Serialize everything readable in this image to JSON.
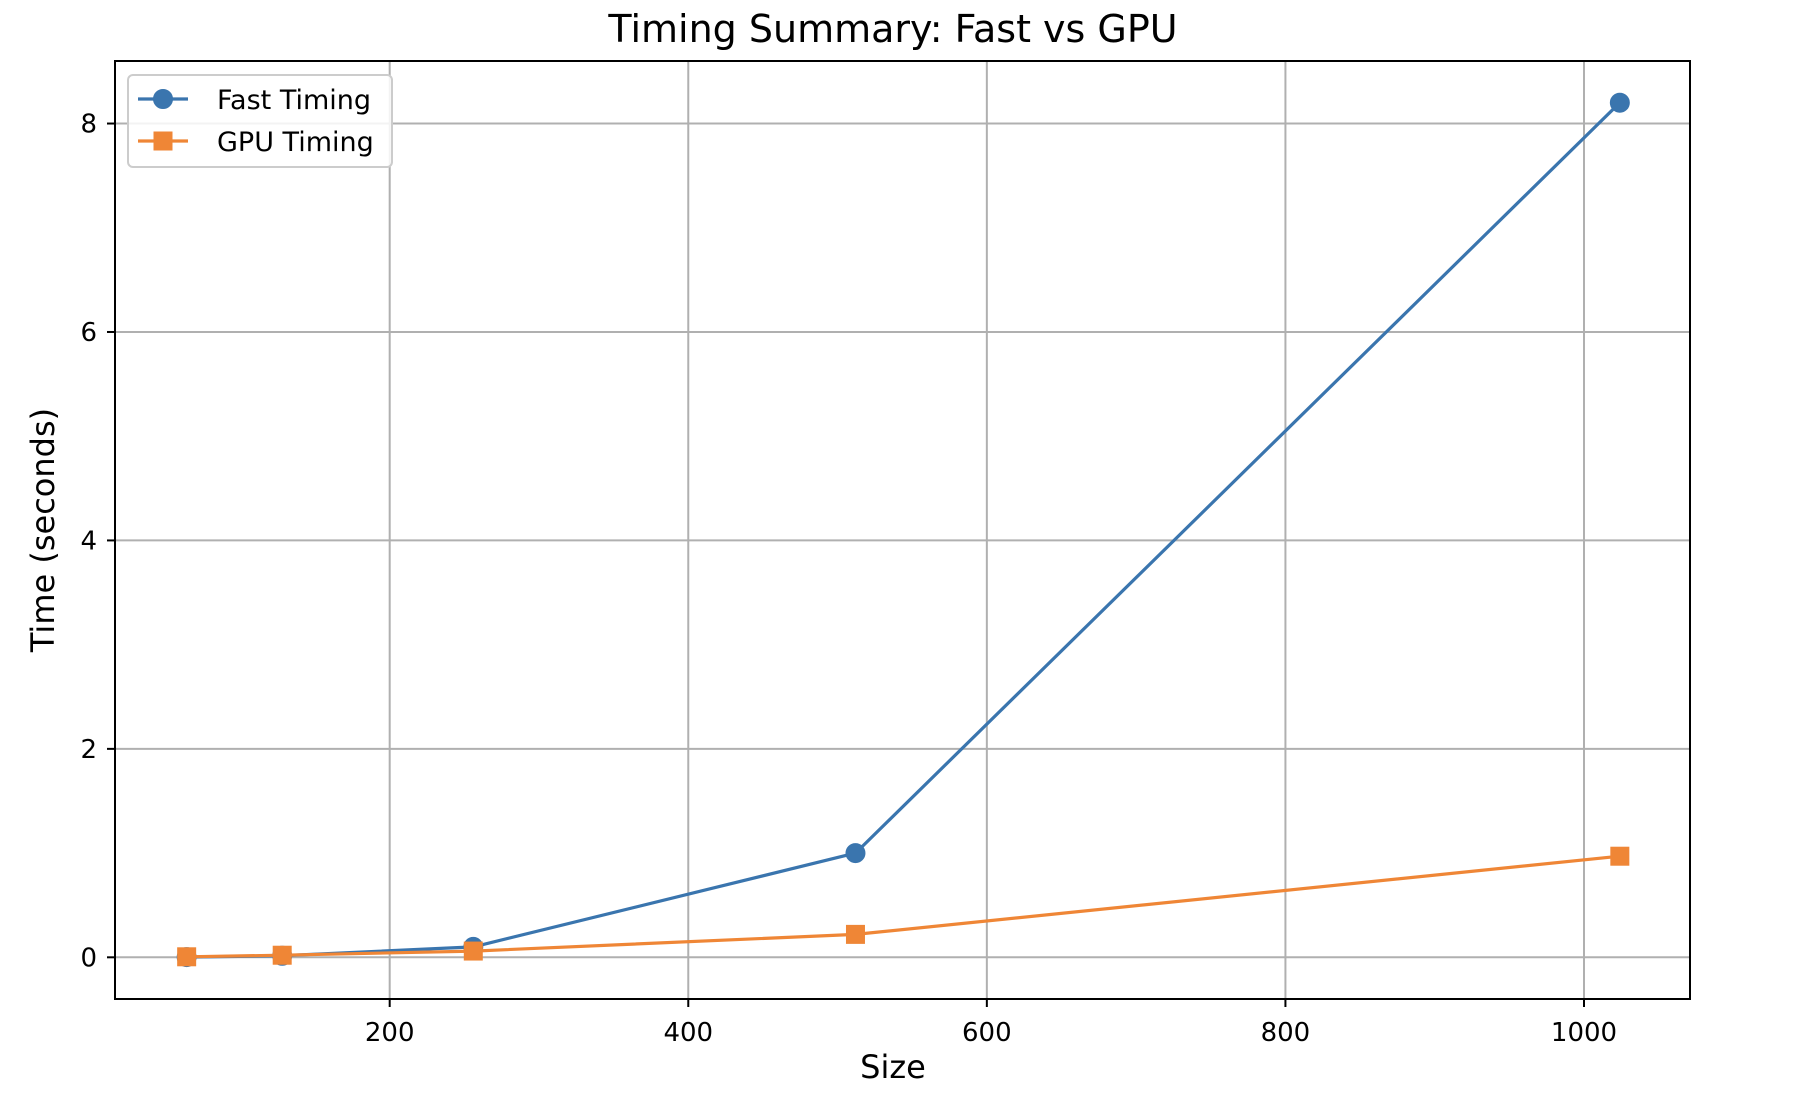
{
  "chart_data": {
    "type": "line",
    "title": "Timing Summary: Fast vs GPU",
    "xlabel": "Size",
    "ylabel": "Time (seconds)",
    "xlim": [
      16,
      1071
    ],
    "ylim": [
      -0.4,
      8.6
    ],
    "xticks": [
      200,
      400,
      600,
      800,
      1000
    ],
    "yticks": [
      0,
      2,
      4,
      6,
      8
    ],
    "x": [
      64,
      128,
      256,
      512,
      1024
    ],
    "grid": true,
    "legend": "top-left",
    "series": [
      {
        "name": "Fast Timing",
        "marker": "circle",
        "color": "#3a75ae",
        "values": [
          0.002,
          0.015,
          0.1,
          1.0,
          8.2
        ]
      },
      {
        "name": "GPU Timing",
        "marker": "square",
        "color": "#ef8636",
        "values": [
          0.005,
          0.02,
          0.06,
          0.22,
          0.97
        ]
      }
    ]
  }
}
